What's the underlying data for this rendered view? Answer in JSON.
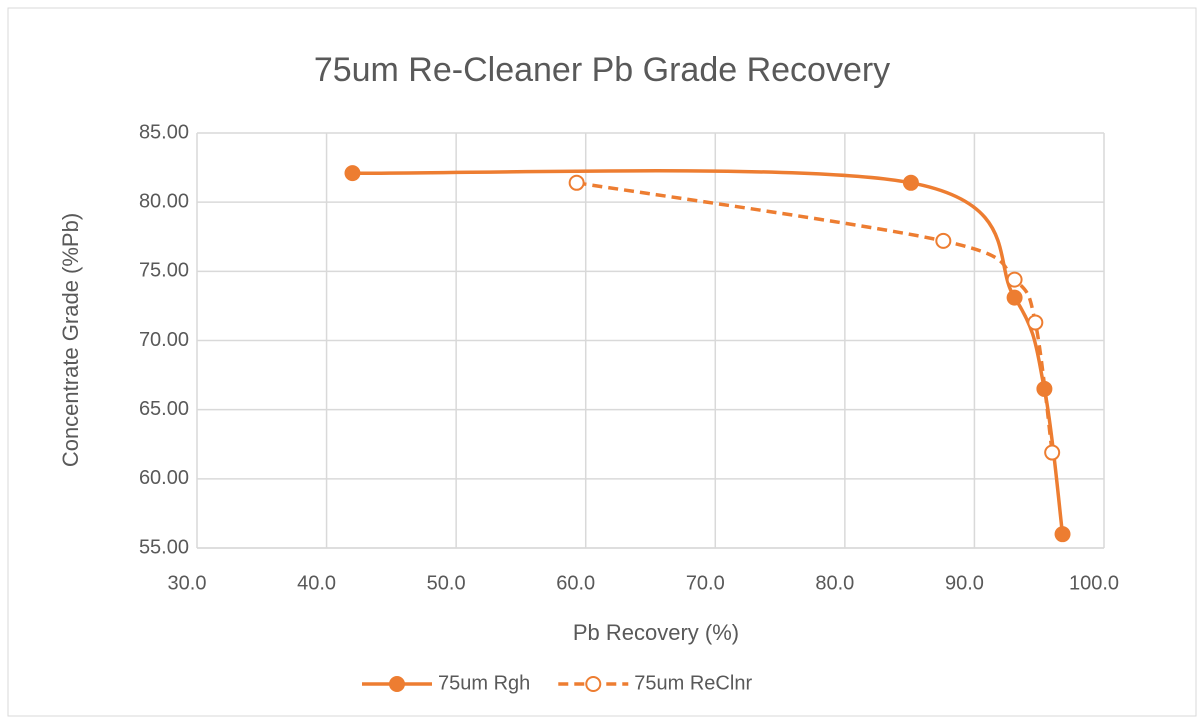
{
  "chart_data": {
    "type": "scatter",
    "title": "75um Re-Cleaner Pb Grade Recovery",
    "x_label": "Pb Recovery (%)",
    "y_label": "Concentrate Grade (%Pb)",
    "xlim": [
      30,
      100
    ],
    "ylim": [
      55,
      85
    ],
    "xticks": [
      {
        "value": 30,
        "label": "30.0"
      },
      {
        "value": 40,
        "label": "40.0"
      },
      {
        "value": 50,
        "label": "50.0"
      },
      {
        "value": 60,
        "label": "60.0"
      },
      {
        "value": 70,
        "label": "70.0"
      },
      {
        "value": 80,
        "label": "80.0"
      },
      {
        "value": 90,
        "label": "90.0"
      },
      {
        "value": 100,
        "label": "100.0"
      }
    ],
    "yticks": [
      {
        "value": 55,
        "label": "55.00"
      },
      {
        "value": 60,
        "label": "60.00"
      },
      {
        "value": 65,
        "label": "65.00"
      },
      {
        "value": 70,
        "label": "70.00"
      },
      {
        "value": 75,
        "label": "75.00"
      },
      {
        "value": 80,
        "label": "80.00"
      },
      {
        "value": 85,
        "label": "85.00"
      }
    ],
    "grid": true,
    "legend": "bottom",
    "series": [
      {
        "name": "75um Rgh",
        "color": "#ed7d31",
        "line": "solid",
        "marker": "filled",
        "x": [
          42.0,
          85.1,
          93.1,
          95.4,
          96.8
        ],
        "values": [
          82.1,
          81.4,
          73.1,
          66.5,
          56.0
        ]
      },
      {
        "name": "75um ReClnr",
        "color": "#ed7d31",
        "line": "dashed",
        "marker": "open",
        "x": [
          59.3,
          87.6,
          93.1,
          94.7,
          96.0
        ],
        "values": [
          81.4,
          77.2,
          74.4,
          71.3,
          61.9
        ]
      }
    ]
  }
}
